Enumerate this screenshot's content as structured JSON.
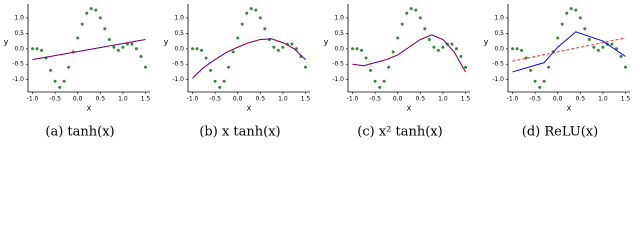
{
  "chart_data": [
    {
      "type": "scatter-fit",
      "caption": "(a) tanh(x)",
      "xlabel": "x",
      "ylabel": "y",
      "xlim": [
        -1.1,
        1.6
      ],
      "ylim": [
        -1.4,
        1.45
      ],
      "xticks": [
        {
          "value": -1.0,
          "label": "-1.0"
        },
        {
          "value": -0.5,
          "label": "-0.5"
        },
        {
          "value": 0.0,
          "label": "0.0"
        },
        {
          "value": 0.5,
          "label": "0.5"
        },
        {
          "value": 1.0,
          "label": "1.0"
        },
        {
          "value": 1.5,
          "label": "1.5"
        }
      ],
      "yticks": [
        {
          "value": -1.0,
          "label": "-1.0"
        },
        {
          "value": -0.5,
          "label": "-0.5"
        },
        {
          "value": 0.0,
          "label": "0.0"
        },
        {
          "value": 0.5,
          "label": "0.5"
        },
        {
          "value": 1.0,
          "label": "1.0"
        }
      ],
      "points": {
        "color": "#2e8b2e",
        "x": [
          -1.0,
          -0.9,
          -0.8,
          -0.7,
          -0.6,
          -0.5,
          -0.4,
          -0.3,
          -0.2,
          -0.1,
          0.0,
          0.1,
          0.2,
          0.3,
          0.4,
          0.5,
          0.6,
          0.7,
          0.8,
          0.9,
          1.0,
          1.1,
          1.2,
          1.3,
          1.4,
          1.5
        ],
        "values": [
          0.0,
          0.0,
          -0.05,
          -0.3,
          -0.7,
          -1.05,
          -1.25,
          -1.05,
          -0.6,
          -0.1,
          0.35,
          0.8,
          1.15,
          1.3,
          1.25,
          1.0,
          0.65,
          0.3,
          0.05,
          -0.05,
          0.05,
          0.15,
          0.15,
          0.0,
          -0.25,
          -0.6
        ]
      },
      "series": [
        {
          "color": "#0000ff",
          "dash": false,
          "x": [
            -1.0,
            1.5
          ],
          "values": [
            -0.35,
            0.3
          ]
        },
        {
          "color": "#ff0000",
          "dash": true,
          "x": [
            -1.0,
            1.5
          ],
          "values": [
            -0.35,
            0.3
          ]
        }
      ]
    },
    {
      "type": "scatter-fit",
      "caption": "(b) x tanh(x)",
      "xlabel": "x",
      "ylabel": "y",
      "xlim": [
        -1.1,
        1.6
      ],
      "ylim": [
        -1.4,
        1.45
      ],
      "xticks": [
        {
          "value": -1.0,
          "label": "-1.0"
        },
        {
          "value": -0.5,
          "label": "-0.5"
        },
        {
          "value": 0.0,
          "label": "0.0"
        },
        {
          "value": 0.5,
          "label": "0.5"
        },
        {
          "value": 1.0,
          "label": "1.0"
        },
        {
          "value": 1.5,
          "label": "1.5"
        }
      ],
      "yticks": [
        {
          "value": -1.0,
          "label": "-1.0"
        },
        {
          "value": -0.5,
          "label": "-0.5"
        },
        {
          "value": 0.0,
          "label": "0.0"
        },
        {
          "value": 0.5,
          "label": "0.5"
        },
        {
          "value": 1.0,
          "label": "1.0"
        }
      ],
      "points": {
        "color": "#2e8b2e",
        "x": [
          -1.0,
          -0.9,
          -0.8,
          -0.7,
          -0.6,
          -0.5,
          -0.4,
          -0.3,
          -0.2,
          -0.1,
          0.0,
          0.1,
          0.2,
          0.3,
          0.4,
          0.5,
          0.6,
          0.7,
          0.8,
          0.9,
          1.0,
          1.1,
          1.2,
          1.3,
          1.4,
          1.5
        ],
        "values": [
          0.0,
          0.0,
          -0.05,
          -0.3,
          -0.7,
          -1.05,
          -1.25,
          -1.05,
          -0.6,
          -0.1,
          0.35,
          0.8,
          1.15,
          1.3,
          1.25,
          1.0,
          0.65,
          0.3,
          0.05,
          -0.05,
          0.05,
          0.15,
          0.15,
          0.0,
          -0.25,
          -0.6
        ]
      },
      "series": [
        {
          "color": "#0000ff",
          "dash": false,
          "x": [
            -1.0,
            -0.75,
            -0.5,
            -0.25,
            0.0,
            0.25,
            0.5,
            0.75,
            1.0,
            1.25,
            1.5
          ],
          "values": [
            -0.95,
            -0.6,
            -0.35,
            -0.12,
            0.05,
            0.2,
            0.3,
            0.32,
            0.2,
            0.0,
            -0.35
          ]
        },
        {
          "color": "#ff0000",
          "dash": true,
          "x": [
            -1.0,
            -0.75,
            -0.5,
            -0.25,
            0.0,
            0.25,
            0.5,
            0.75,
            1.0,
            1.25,
            1.5
          ],
          "values": [
            -0.95,
            -0.6,
            -0.35,
            -0.12,
            0.05,
            0.2,
            0.3,
            0.32,
            0.2,
            0.0,
            -0.35
          ]
        }
      ]
    },
    {
      "type": "scatter-fit",
      "caption": "(c) x² tanh(x)",
      "xlabel": "x",
      "ylabel": "y",
      "xlim": [
        -1.1,
        1.6
      ],
      "ylim": [
        -1.4,
        1.45
      ],
      "xticks": [
        {
          "value": -1.0,
          "label": "-1.0"
        },
        {
          "value": -0.5,
          "label": "-0.5"
        },
        {
          "value": 0.0,
          "label": "0.0"
        },
        {
          "value": 0.5,
          "label": "0.5"
        },
        {
          "value": 1.0,
          "label": "1.0"
        },
        {
          "value": 1.5,
          "label": "1.5"
        }
      ],
      "yticks": [
        {
          "value": -1.0,
          "label": "-1.0"
        },
        {
          "value": -0.5,
          "label": "-0.5"
        },
        {
          "value": 0.0,
          "label": "0.0"
        },
        {
          "value": 0.5,
          "label": "0.5"
        },
        {
          "value": 1.0,
          "label": "1.0"
        }
      ],
      "points": {
        "color": "#2e8b2e",
        "x": [
          -1.0,
          -0.9,
          -0.8,
          -0.7,
          -0.6,
          -0.5,
          -0.4,
          -0.3,
          -0.2,
          -0.1,
          0.0,
          0.1,
          0.2,
          0.3,
          0.4,
          0.5,
          0.6,
          0.7,
          0.8,
          0.9,
          1.0,
          1.1,
          1.2,
          1.3,
          1.4,
          1.5
        ],
        "values": [
          0.0,
          0.0,
          -0.05,
          -0.3,
          -0.7,
          -1.05,
          -1.25,
          -1.05,
          -0.6,
          -0.1,
          0.35,
          0.8,
          1.15,
          1.3,
          1.25,
          1.0,
          0.65,
          0.3,
          0.05,
          -0.05,
          0.05,
          0.15,
          0.15,
          0.0,
          -0.25,
          -0.6
        ]
      },
      "series": [
        {
          "color": "#0000ff",
          "dash": false,
          "x": [
            -1.0,
            -0.75,
            -0.5,
            -0.25,
            0.0,
            0.25,
            0.5,
            0.75,
            1.0,
            1.25,
            1.5
          ],
          "values": [
            -0.5,
            -0.55,
            -0.45,
            -0.35,
            -0.2,
            0.05,
            0.3,
            0.45,
            0.3,
            -0.1,
            -0.75
          ]
        },
        {
          "color": "#ff0000",
          "dash": true,
          "x": [
            -1.0,
            -0.75,
            -0.5,
            -0.25,
            0.0,
            0.25,
            0.5,
            0.75,
            1.0,
            1.25,
            1.5
          ],
          "values": [
            -0.5,
            -0.55,
            -0.45,
            -0.35,
            -0.2,
            0.05,
            0.3,
            0.45,
            0.3,
            -0.1,
            -0.75
          ]
        }
      ]
    },
    {
      "type": "scatter-fit",
      "caption": "(d) ReLU(x)",
      "xlabel": "x",
      "ylabel": "y",
      "xlim": [
        -1.1,
        1.6
      ],
      "ylim": [
        -1.4,
        1.45
      ],
      "xticks": [
        {
          "value": -1.0,
          "label": "-1.0"
        },
        {
          "value": -0.5,
          "label": "-0.5"
        },
        {
          "value": 0.0,
          "label": "0.0"
        },
        {
          "value": 0.5,
          "label": "0.5"
        },
        {
          "value": 1.0,
          "label": "1.0"
        },
        {
          "value": 1.5,
          "label": "1.5"
        }
      ],
      "yticks": [
        {
          "value": -1.0,
          "label": "-1.0"
        },
        {
          "value": -0.5,
          "label": "-0.5"
        },
        {
          "value": 0.0,
          "label": "0.0"
        },
        {
          "value": 0.5,
          "label": "0.5"
        },
        {
          "value": 1.0,
          "label": "1.0"
        }
      ],
      "points": {
        "color": "#2e8b2e",
        "x": [
          -1.0,
          -0.9,
          -0.8,
          -0.7,
          -0.6,
          -0.5,
          -0.4,
          -0.3,
          -0.2,
          -0.1,
          0.0,
          0.1,
          0.2,
          0.3,
          0.4,
          0.5,
          0.6,
          0.7,
          0.8,
          0.9,
          1.0,
          1.1,
          1.2,
          1.3,
          1.4,
          1.5
        ],
        "values": [
          0.0,
          0.0,
          -0.05,
          -0.3,
          -0.7,
          -1.05,
          -1.25,
          -1.05,
          -0.6,
          -0.1,
          0.35,
          0.8,
          1.15,
          1.3,
          1.25,
          1.0,
          0.65,
          0.3,
          0.05,
          -0.05,
          0.05,
          0.15,
          0.15,
          0.0,
          -0.25,
          -0.6
        ]
      },
      "series": [
        {
          "color": "#0000ff",
          "dash": false,
          "x": [
            -1.0,
            -0.3,
            0.0,
            0.4,
            1.0,
            1.5
          ],
          "values": [
            -0.75,
            -0.45,
            0.05,
            0.55,
            0.25,
            -0.25
          ]
        },
        {
          "color": "#ff0000",
          "dash": true,
          "x": [
            -1.0,
            1.5
          ],
          "values": [
            -0.4,
            0.35
          ]
        }
      ]
    }
  ]
}
